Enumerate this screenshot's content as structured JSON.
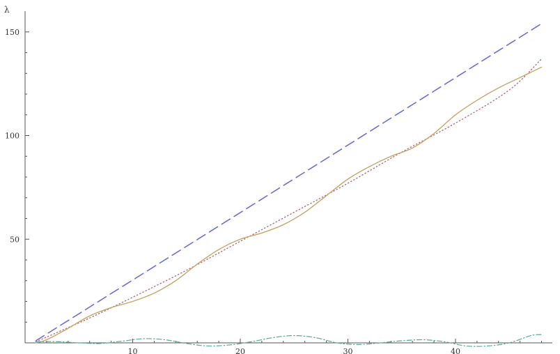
{
  "chart_data": {
    "type": "line",
    "ylabel": "λ",
    "xlabel": "",
    "xlim": [
      0,
      49
    ],
    "ylim": [
      0,
      158
    ],
    "xticks": [
      {
        "value": 10,
        "label": "10"
      },
      {
        "value": 20,
        "label": "20"
      },
      {
        "value": 30,
        "label": "30"
      },
      {
        "value": 40,
        "label": "40"
      }
    ],
    "yticks": [
      {
        "value": 50,
        "label": "50"
      },
      {
        "value": 100,
        "label": "100"
      },
      {
        "value": 150,
        "label": "150"
      }
    ],
    "x_minor_step": 2,
    "y_minor_step": 10,
    "grid": false,
    "series": [
      {
        "style": "dashed",
        "color": "#6b6fd6",
        "x": [
          1,
          48
        ],
        "y": [
          1,
          154
        ]
      },
      {
        "style": "dotted",
        "color": "#b86a78",
        "x": [
          1,
          6,
          10,
          15,
          20,
          25,
          30,
          35,
          40,
          45,
          48
        ],
        "y": [
          0.5,
          12,
          22,
          35,
          49,
          63,
          77,
          92,
          106,
          122,
          137
        ]
      },
      {
        "style": "solid",
        "color": "#c8a56a",
        "x": [
          1,
          2,
          4,
          6,
          8,
          10,
          12,
          14,
          16,
          18,
          20,
          22,
          24,
          26,
          28,
          30,
          32,
          34,
          36,
          38,
          40,
          42,
          44,
          46,
          48
        ],
        "y": [
          0,
          1.5,
          7,
          13,
          17,
          20,
          24,
          30,
          38,
          45,
          50,
          53,
          57,
          63,
          71,
          79,
          85,
          90,
          94,
          101,
          110,
          117,
          123,
          128,
          133
        ]
      },
      {
        "style": "dash-dot",
        "color": "#5aa89a",
        "x": [
          1,
          3,
          5,
          7,
          9,
          11,
          13,
          15,
          17,
          19,
          21,
          23,
          25,
          27,
          29,
          31,
          33,
          35,
          37,
          39,
          41,
          43,
          45,
          47,
          48
        ],
        "y": [
          0.5,
          0.6,
          0,
          -0.3,
          0.8,
          2,
          1.5,
          -0.3,
          -1.5,
          -1,
          0.5,
          2.5,
          3.5,
          2.5,
          0,
          -0.8,
          0,
          1,
          1.5,
          0.5,
          -1.5,
          -1.5,
          0,
          3.5,
          4
        ]
      }
    ]
  }
}
